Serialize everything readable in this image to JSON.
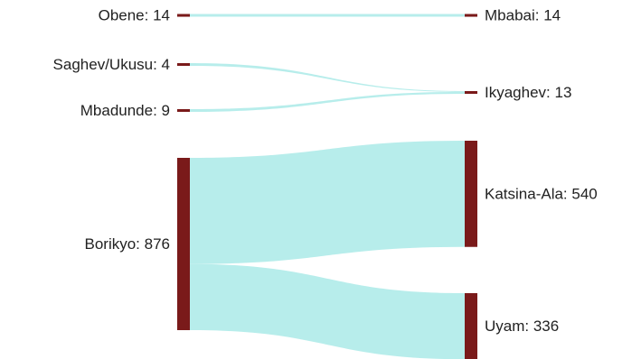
{
  "chart_data": {
    "type": "sankey",
    "title": "",
    "colors": {
      "node": "#7a1a1a",
      "link": "#b3ecea"
    },
    "nodes": [
      {
        "id": "obene",
        "name": "Obene",
        "value": 14,
        "label": "Obene: 14",
        "side": "left"
      },
      {
        "id": "saghev",
        "name": "Saghev/Ukusu",
        "value": 4,
        "label": "Saghev/Ukusu: 4",
        "side": "left"
      },
      {
        "id": "mbadunde",
        "name": "Mbadunde",
        "value": 9,
        "label": "Mbadunde: 9",
        "side": "left"
      },
      {
        "id": "borikyo",
        "name": "Borikyo",
        "value": 876,
        "label": "Borikyo: 876",
        "side": "left"
      },
      {
        "id": "mbabai",
        "name": "Mbabai",
        "value": 14,
        "label": "Mbabai: 14",
        "side": "right"
      },
      {
        "id": "ikyaghev",
        "name": "Ikyaghev",
        "value": 13,
        "label": "Ikyaghev: 13",
        "side": "right"
      },
      {
        "id": "katsina",
        "name": "Katsina-Ala",
        "value": 540,
        "label": "Katsina-Ala: 540",
        "side": "right"
      },
      {
        "id": "uyam",
        "name": "Uyam",
        "value": 336,
        "label": "Uyam: 336",
        "side": "right"
      }
    ],
    "links": [
      {
        "source": "obene",
        "target": "mbabai",
        "value": 14
      },
      {
        "source": "saghev",
        "target": "ikyaghev",
        "value": 4
      },
      {
        "source": "mbadunde",
        "target": "ikyaghev",
        "value": 9
      },
      {
        "source": "borikyo",
        "target": "katsina",
        "value": 540
      },
      {
        "source": "borikyo",
        "target": "uyam",
        "value": 336
      }
    ]
  }
}
